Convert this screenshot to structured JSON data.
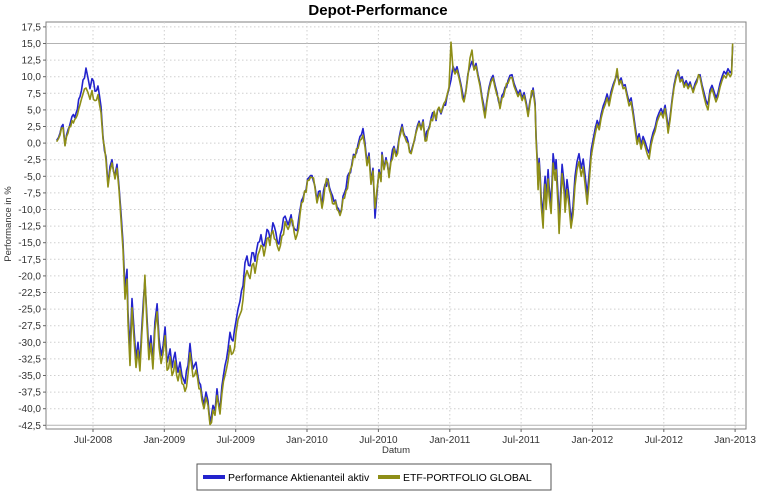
{
  "title": "Depot-Performance",
  "axes": {
    "y_label": "Performance in %",
    "x_label": "Datum",
    "y_ticks": [
      {
        "label": "17,5",
        "value": 17.5
      },
      {
        "label": "15,0",
        "value": 15.0
      },
      {
        "label": "12,5",
        "value": 12.5
      },
      {
        "label": "10,0",
        "value": 10.0
      },
      {
        "label": "7,5",
        "value": 7.5
      },
      {
        "label": "5,0",
        "value": 5.0
      },
      {
        "label": "2,5",
        "value": 2.5
      },
      {
        "label": "0,0",
        "value": 0.0
      },
      {
        "label": "-2,5",
        "value": -2.5
      },
      {
        "label": "-5,0",
        "value": -5.0
      },
      {
        "label": "-7,5",
        "value": -7.5
      },
      {
        "label": "-10,0",
        "value": -10.0
      },
      {
        "label": "-12,5",
        "value": -12.5
      },
      {
        "label": "-15,0",
        "value": -15.0
      },
      {
        "label": "-17,5",
        "value": -17.5
      },
      {
        "label": "-20,0",
        "value": -20.0
      },
      {
        "label": "-22,5",
        "value": -22.5
      },
      {
        "label": "-25,0",
        "value": -25.0
      },
      {
        "label": "-27,5",
        "value": -27.5
      },
      {
        "label": "-30,0",
        "value": -30.0
      },
      {
        "label": "-32,5",
        "value": -32.5
      },
      {
        "label": "-35,0",
        "value": -35.0
      },
      {
        "label": "-37,5",
        "value": -37.5
      },
      {
        "label": "-40,0",
        "value": -40.0
      },
      {
        "label": "-42,5",
        "value": -42.5
      }
    ],
    "x_ticks": [
      {
        "label": "Jul-2008",
        "year": 2008.5
      },
      {
        "label": "Jan-2009",
        "year": 2009.0
      },
      {
        "label": "Jul-2009",
        "year": 2009.5
      },
      {
        "label": "Jan-2010",
        "year": 2010.0
      },
      {
        "label": "Jul-2010",
        "year": 2010.5
      },
      {
        "label": "Jan-2011",
        "year": 2011.0
      },
      {
        "label": "Jul-2011",
        "year": 2011.5
      },
      {
        "label": "Jan-2012",
        "year": 2012.0
      },
      {
        "label": "Jul-2012",
        "year": 2012.5
      },
      {
        "label": "Jan-2013",
        "year": 2013.0
      }
    ],
    "solid_gridlines": [
      15.0,
      -42.5
    ]
  },
  "legend": {
    "items": [
      {
        "label": "Performance Aktienanteil aktiv",
        "color": "#2323cd"
      },
      {
        "label": "ETF-PORTFOLIO GLOBAL",
        "color": "#8e8e17"
      }
    ]
  },
  "chart_data": {
    "type": "line",
    "title": "Depot-Performance",
    "xlabel": "Datum",
    "ylabel": "Performance in %",
    "ylim": [
      -42.5,
      17.5
    ],
    "xlim_years": [
      2008.2,
      2013.08
    ],
    "grid": true,
    "legend_position": "bottom",
    "x_unit": "decimal_year",
    "x": [
      2008.248,
      2008.269,
      2008.29,
      2008.304,
      2008.325,
      2008.353,
      2008.381,
      2008.409,
      2008.43,
      2008.451,
      2008.465,
      2008.479,
      2008.493,
      2008.514,
      2008.535,
      2008.556,
      2008.57,
      2008.591,
      2008.605,
      2008.619,
      2008.633,
      2008.654,
      2008.668,
      2008.682,
      2008.696,
      2008.71,
      2008.724,
      2008.738,
      2008.745,
      2008.759,
      2008.773,
      2008.787,
      2008.801,
      2008.815,
      2008.829,
      2008.843,
      2008.864,
      2008.878,
      2008.892,
      2008.906,
      2008.92,
      2008.934,
      2008.949,
      2008.963,
      2008.977,
      2008.991,
      2009.005,
      2009.019,
      2009.04,
      2009.054,
      2009.075,
      2009.096,
      2009.11,
      2009.124,
      2009.145,
      2009.166,
      2009.18,
      2009.201,
      2009.222,
      2009.243,
      2009.264,
      2009.278,
      2009.292,
      2009.306,
      2009.32,
      2009.341,
      2009.355,
      2009.369,
      2009.39,
      2009.404,
      2009.425,
      2009.446,
      2009.46,
      2009.481,
      2009.502,
      2009.516,
      2009.53,
      2009.551,
      2009.565,
      2009.579,
      2009.6,
      2009.614,
      2009.635,
      2009.656,
      2009.677,
      2009.698,
      2009.719,
      2009.74,
      2009.761,
      2009.782,
      2009.803,
      2009.824,
      2009.846,
      2009.867,
      2009.888,
      2009.909,
      2009.93,
      2009.951,
      2009.972,
      2009.993,
      2010.014,
      2010.035,
      2010.056,
      2010.07,
      2010.091,
      2010.105,
      2010.126,
      2010.147,
      2010.168,
      2010.189,
      2010.21,
      2010.231,
      2010.252,
      2010.273,
      2010.294,
      2010.315,
      2010.336,
      2010.357,
      2010.371,
      2010.392,
      2010.406,
      2010.42,
      2010.434,
      2010.448,
      2010.462,
      2010.476,
      2010.49,
      2010.504,
      2010.518,
      2010.525,
      2010.539,
      2010.553,
      2010.574,
      2010.588,
      2010.609,
      2010.624,
      2010.645,
      2010.666,
      2010.687,
      2010.708,
      2010.729,
      2010.743,
      2010.764,
      2010.785,
      2010.799,
      2010.813,
      2010.827,
      2010.848,
      2010.869,
      2010.89,
      2010.904,
      2010.925,
      2010.939,
      2010.96,
      2010.981,
      2010.995,
      2011.009,
      2011.023,
      2011.037,
      2011.051,
      2011.065,
      2011.079,
      2011.1,
      2011.114,
      2011.128,
      2011.142,
      2011.156,
      2011.17,
      2011.184,
      2011.198,
      2011.212,
      2011.226,
      2011.247,
      2011.261,
      2011.275,
      2011.289,
      2011.303,
      2011.317,
      2011.331,
      2011.352,
      2011.366,
      2011.387,
      2011.408,
      2011.422,
      2011.436,
      2011.45,
      2011.464,
      2011.478,
      2011.492,
      2011.507,
      2011.521,
      2011.535,
      2011.549,
      2011.563,
      2011.584,
      2011.598,
      2011.605,
      2011.612,
      2011.619,
      2011.626,
      2011.633,
      2011.64,
      2011.654,
      2011.661,
      2011.668,
      2011.675,
      2011.689,
      2011.696,
      2011.71,
      2011.717,
      2011.724,
      2011.738,
      2011.745,
      2011.759,
      2011.766,
      2011.78,
      2011.787,
      2011.801,
      2011.808,
      2011.822,
      2011.836,
      2011.85,
      2011.864,
      2011.878,
      2011.892,
      2011.906,
      2011.921,
      2011.935,
      2011.949,
      2011.963,
      2011.977,
      2011.991,
      2012.005,
      2012.019,
      2012.033,
      2012.047,
      2012.061,
      2012.075,
      2012.089,
      2012.103,
      2012.117,
      2012.131,
      2012.145,
      2012.159,
      2012.173,
      2012.187,
      2012.201,
      2012.215,
      2012.229,
      2012.243,
      2012.257,
      2012.271,
      2012.285,
      2012.299,
      2012.313,
      2012.327,
      2012.341,
      2012.355,
      2012.369,
      2012.383,
      2012.397,
      2012.411,
      2012.425,
      2012.439,
      2012.453,
      2012.467,
      2012.481,
      2012.495,
      2012.509,
      2012.523,
      2012.53,
      2012.544,
      2012.558,
      2012.572,
      2012.586,
      2012.6,
      2012.614,
      2012.628,
      2012.642,
      2012.656,
      2012.67,
      2012.684,
      2012.705,
      2012.719,
      2012.733,
      2012.754,
      2012.768,
      2012.782,
      2012.796,
      2012.81,
      2012.824,
      2012.838,
      2012.852,
      2012.866,
      2012.88,
      2012.894,
      2012.908,
      2012.922,
      2012.936,
      2012.95,
      2012.965,
      2012.975,
      2012.982
    ],
    "series": [
      {
        "name": "Performance Aktienanteil aktiv",
        "color": "#2323cd",
        "values": [
          0.5,
          1.5,
          2.8,
          -0.3,
          2.0,
          4.0,
          4.5,
          7.0,
          9.5,
          11.3,
          9.8,
          8.2,
          9.7,
          7.8,
          8.6,
          5.5,
          1.0,
          -2.0,
          -6.3,
          -3.5,
          -2.5,
          -4.8,
          -3.2,
          -6.5,
          -10.5,
          -15.0,
          -22.0,
          -19.0,
          -25.5,
          -31.0,
          -23.4,
          -28.0,
          -32.5,
          -30.0,
          -33.2,
          -27.5,
          -20.6,
          -26.0,
          -31.5,
          -29.0,
          -32.9,
          -27.0,
          -24.2,
          -29.5,
          -32.0,
          -30.5,
          -27.7,
          -33.0,
          -31.0,
          -33.8,
          -31.5,
          -34.5,
          -33.0,
          -35.0,
          -36.2,
          -33.5,
          -30.2,
          -34.0,
          -33.0,
          -36.0,
          -38.0,
          -39.4,
          -37.5,
          -38.8,
          -42.2,
          -39.5,
          -40.3,
          -37.0,
          -40.0,
          -36.5,
          -33.5,
          -31.0,
          -28.5,
          -29.8,
          -26.8,
          -25.0,
          -23.8,
          -21.5,
          -18.0,
          -17.0,
          -18.5,
          -16.5,
          -17.8,
          -15.0,
          -13.8,
          -15.5,
          -13.0,
          -14.2,
          -12.0,
          -13.5,
          -15.2,
          -13.0,
          -11.0,
          -12.3,
          -10.8,
          -12.8,
          -13.2,
          -10.0,
          -8.2,
          -7.0,
          -5.2,
          -4.9,
          -6.5,
          -8.8,
          -7.2,
          -9.5,
          -6.2,
          -5.4,
          -7.4,
          -8.8,
          -9.6,
          -10.6,
          -8.0,
          -6.8,
          -4.5,
          -3.0,
          -1.8,
          -0.2,
          1.0,
          2.2,
          0.0,
          -3.0,
          -1.5,
          -5.8,
          -3.8,
          -11.3,
          -7.5,
          -4.0,
          -5.5,
          -1.4,
          -3.8,
          -2.2,
          -4.8,
          -2.5,
          -0.5,
          -1.8,
          0.8,
          2.8,
          1.0,
          0.2,
          -1.3,
          -0.2,
          1.8,
          3.3,
          2.2,
          3.5,
          0.5,
          2.0,
          3.8,
          4.6,
          3.4,
          5.2,
          4.4,
          5.8,
          7.0,
          8.2,
          9.5,
          11.6,
          10.8,
          11.5,
          10.2,
          8.8,
          6.4,
          8.0,
          10.5,
          11.5,
          12.3,
          11.2,
          12.0,
          10.3,
          9.0,
          7.0,
          4.2,
          6.5,
          8.4,
          9.6,
          10.2,
          8.8,
          7.6,
          5.5,
          7.2,
          8.4,
          9.4,
          10.2,
          10.3,
          9.0,
          8.2,
          7.4,
          8.0,
          6.8,
          7.6,
          6.2,
          4.4,
          6.5,
          8.3,
          6.0,
          1.0,
          -2.0,
          -6.3,
          -2.3,
          -4.5,
          -8.0,
          -11.0,
          -7.0,
          -5.0,
          -8.5,
          -4.0,
          -6.5,
          -9.0,
          -5.5,
          -1.6,
          -4.0,
          -2.5,
          -8.0,
          -11.9,
          -6.0,
          -3.2,
          -6.0,
          -9.0,
          -5.5,
          -8.0,
          -11.8,
          -9.5,
          -5.0,
          -2.8,
          -1.6,
          -3.8,
          -2.4,
          -5.0,
          -7.8,
          -4.5,
          -1.0,
          0.6,
          2.2,
          3.4,
          2.6,
          4.4,
          5.6,
          6.4,
          7.4,
          6.2,
          7.8,
          8.8,
          9.6,
          10.3,
          9.2,
          9.8,
          8.6,
          8.8,
          7.4,
          6.2,
          6.8,
          4.8,
          2.6,
          0.5,
          1.4,
          -0.2,
          1.0,
          0.2,
          -0.8,
          -1.5,
          0.4,
          1.6,
          2.4,
          3.8,
          4.6,
          5.2,
          4.4,
          5.7,
          3.6,
          2.0,
          4.0,
          6.6,
          8.8,
          10.2,
          11.0,
          9.6,
          10.0,
          8.8,
          9.4,
          8.6,
          9.2,
          8.0,
          9.0,
          9.6,
          10.3,
          8.8,
          7.6,
          6.4,
          5.8,
          8.0,
          8.7,
          7.8,
          6.8,
          7.6,
          9.0,
          10.0,
          10.8,
          10.4,
          11.2,
          10.6,
          10.9,
          14.5
        ]
      },
      {
        "name": "ETF-PORTFOLIO GLOBAL",
        "color": "#8e8e17",
        "values": [
          0.3,
          1.2,
          2.3,
          -0.4,
          1.5,
          3.4,
          3.8,
          5.8,
          7.4,
          8.3,
          7.6,
          6.6,
          7.9,
          6.4,
          7.3,
          4.6,
          0.6,
          -2.6,
          -6.6,
          -4.2,
          -3.0,
          -5.4,
          -3.8,
          -7.0,
          -11.5,
          -16.0,
          -23.5,
          -20.5,
          -27.0,
          -33.5,
          -24.8,
          -29.5,
          -33.8,
          -31.2,
          -34.3,
          -28.6,
          -19.9,
          -27.2,
          -32.6,
          -30.2,
          -34.0,
          -28.2,
          -25.4,
          -30.8,
          -33.2,
          -31.6,
          -29.0,
          -34.2,
          -32.2,
          -35.0,
          -32.8,
          -35.8,
          -34.2,
          -36.2,
          -37.4,
          -34.8,
          -31.6,
          -35.2,
          -34.2,
          -37.0,
          -38.8,
          -40.0,
          -38.3,
          -39.5,
          -42.4,
          -40.2,
          -41.0,
          -38.0,
          -40.8,
          -37.6,
          -35.0,
          -32.8,
          -30.5,
          -31.6,
          -28.6,
          -26.6,
          -25.8,
          -23.6,
          -20.2,
          -19.2,
          -20.4,
          -18.4,
          -19.6,
          -16.8,
          -15.4,
          -17.0,
          -14.4,
          -15.4,
          -13.2,
          -14.6,
          -16.2,
          -14.0,
          -11.8,
          -13.0,
          -11.4,
          -13.4,
          -13.8,
          -10.6,
          -8.8,
          -7.4,
          -5.6,
          -5.2,
          -6.8,
          -9.0,
          -7.5,
          -9.8,
          -6.5,
          -5.8,
          -7.8,
          -9.2,
          -10.0,
          -10.9,
          -8.4,
          -7.2,
          -5.0,
          -3.4,
          -2.2,
          -0.8,
          0.4,
          1.2,
          -0.6,
          -3.4,
          -2.0,
          -6.2,
          -4.2,
          -9.8,
          -7.0,
          -4.4,
          -5.8,
          -1.8,
          -4.0,
          -2.6,
          -5.2,
          -2.8,
          -0.8,
          -2.0,
          0.6,
          2.4,
          0.8,
          0.0,
          -1.6,
          -0.4,
          1.6,
          3.0,
          2.0,
          3.2,
          0.3,
          1.8,
          3.6,
          4.8,
          3.6,
          5.4,
          4.6,
          6.0,
          7.2,
          8.4,
          15.2,
          11.2,
          10.4,
          11.0,
          9.8,
          8.4,
          6.2,
          7.8,
          10.2,
          12.8,
          14.0,
          11.0,
          11.6,
          10.0,
          8.6,
          6.6,
          3.8,
          6.2,
          8.0,
          9.2,
          9.8,
          8.4,
          7.2,
          5.2,
          6.8,
          8.0,
          9.0,
          9.8,
          9.9,
          8.6,
          7.8,
          7.0,
          7.6,
          6.4,
          7.2,
          5.8,
          4.0,
          6.1,
          7.9,
          5.5,
          0.4,
          -2.6,
          -7.0,
          -3.0,
          -5.4,
          -9.2,
          -12.8,
          -8.2,
          -6.2,
          -10.0,
          -5.4,
          -8.0,
          -10.6,
          -7.0,
          -3.0,
          -5.6,
          -4.0,
          -9.6,
          -13.6,
          -7.6,
          -4.6,
          -7.4,
          -10.4,
          -7.0,
          -9.4,
          -12.8,
          -10.8,
          -6.4,
          -4.0,
          -2.8,
          -5.0,
          -3.6,
          -6.4,
          -9.2,
          -5.8,
          -2.0,
          -0.2,
          1.4,
          2.8,
          2.0,
          3.8,
          5.0,
          5.8,
          6.8,
          5.6,
          7.2,
          8.4,
          9.4,
          11.2,
          8.8,
          9.4,
          8.2,
          8.4,
          7.0,
          5.6,
          6.2,
          4.2,
          2.0,
          -0.2,
          0.8,
          -0.9,
          0.4,
          -0.5,
          -1.6,
          -2.4,
          -0.3,
          1.0,
          1.8,
          3.2,
          4.0,
          4.6,
          3.8,
          5.2,
          3.0,
          1.5,
          3.5,
          6.2,
          8.4,
          9.8,
          10.8,
          9.2,
          9.6,
          8.4,
          9.0,
          8.2,
          8.8,
          7.6,
          8.6,
          9.2,
          9.9,
          8.4,
          7.0,
          5.8,
          5.0,
          7.4,
          8.2,
          7.2,
          6.2,
          7.0,
          8.4,
          9.4,
          10.2,
          9.8,
          10.6,
          10.0,
          10.4,
          14.9
        ]
      }
    ]
  }
}
